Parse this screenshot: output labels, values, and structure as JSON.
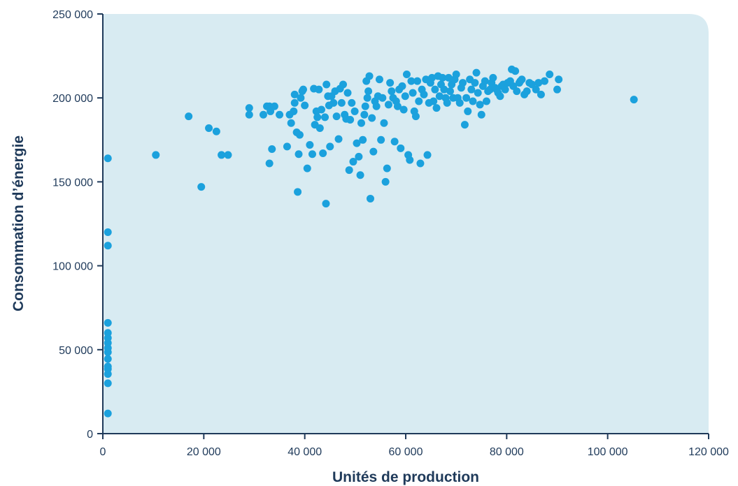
{
  "colors": {
    "plot_background": "#d8ebf2",
    "point": "#1ba1dd",
    "axis": "#1f3a5a",
    "text": "#1f3a5a"
  },
  "chart_data": {
    "type": "scatter",
    "title": "",
    "xlabel": "Unités de production",
    "ylabel": "Consommation d’énergie",
    "xlim": [
      0,
      120000
    ],
    "ylim": [
      0,
      250000
    ],
    "x_ticks": [
      0,
      20000,
      40000,
      60000,
      80000,
      100000,
      120000
    ],
    "y_ticks": [
      0,
      50000,
      100000,
      150000,
      200000,
      250000
    ],
    "x_tick_labels": [
      "0",
      "20 000",
      "40 000",
      "60 000",
      "80 000",
      "100 000",
      "120 000"
    ],
    "y_tick_labels": [
      "0",
      "50 000",
      "100 000",
      "150 000",
      "200 000",
      "250 000"
    ],
    "grid": false,
    "legend": "none",
    "series": [
      {
        "points": [
          [
            1000,
            12000
          ],
          [
            1000,
            30000
          ],
          [
            1000,
            35500
          ],
          [
            1000,
            38500
          ],
          [
            1000,
            40000
          ],
          [
            1000,
            44500
          ],
          [
            1000,
            48500
          ],
          [
            1000,
            51000
          ],
          [
            1000,
            54000
          ],
          [
            1000,
            57000
          ],
          [
            1000,
            60000
          ],
          [
            1000,
            66000
          ],
          [
            1000,
            112000
          ],
          [
            1000,
            120000
          ],
          [
            1000,
            164000
          ],
          [
            10500,
            166000
          ],
          [
            17000,
            189000
          ],
          [
            19500,
            147000
          ],
          [
            21000,
            182000
          ],
          [
            22500,
            180000
          ],
          [
            23500,
            166000
          ],
          [
            24800,
            166000
          ],
          [
            29000,
            190000
          ],
          [
            29000,
            194000
          ],
          [
            31800,
            190000
          ],
          [
            32500,
            195000
          ],
          [
            33000,
            195000
          ],
          [
            33200,
            192000
          ],
          [
            33000,
            161000
          ],
          [
            33500,
            169500
          ],
          [
            34000,
            195000
          ],
          [
            35000,
            190000
          ],
          [
            36500,
            171000
          ],
          [
            37000,
            190000
          ],
          [
            37300,
            185000
          ],
          [
            37800,
            192000
          ],
          [
            38000,
            197000
          ],
          [
            38000,
            202000
          ],
          [
            38400,
            179500
          ],
          [
            38600,
            144000
          ],
          [
            38800,
            166500
          ],
          [
            39000,
            178000
          ],
          [
            39200,
            200000
          ],
          [
            39500,
            204000
          ],
          [
            39700,
            205000
          ],
          [
            40000,
            195500
          ],
          [
            40500,
            158000
          ],
          [
            41000,
            172000
          ],
          [
            41500,
            166500
          ],
          [
            41800,
            205500
          ],
          [
            42000,
            184000
          ],
          [
            42300,
            192000
          ],
          [
            42500,
            188500
          ],
          [
            42800,
            205000
          ],
          [
            43000,
            182000
          ],
          [
            43300,
            193000
          ],
          [
            43600,
            167000
          ],
          [
            44000,
            188500
          ],
          [
            44200,
            137000
          ],
          [
            44300,
            208000
          ],
          [
            44600,
            201000
          ],
          [
            44800,
            195500
          ],
          [
            45000,
            171000
          ],
          [
            45300,
            201000
          ],
          [
            45700,
            197000
          ],
          [
            46000,
            204000
          ],
          [
            46300,
            189000
          ],
          [
            46700,
            175500
          ],
          [
            47000,
            205500
          ],
          [
            47300,
            197000
          ],
          [
            47600,
            208000
          ],
          [
            47900,
            190000
          ],
          [
            48200,
            187500
          ],
          [
            48500,
            203000
          ],
          [
            48800,
            157000
          ],
          [
            49000,
            187000
          ],
          [
            49300,
            197000
          ],
          [
            49600,
            162000
          ],
          [
            49900,
            192000
          ],
          [
            50300,
            173000
          ],
          [
            50700,
            165000
          ],
          [
            51000,
            154000
          ],
          [
            51200,
            185000
          ],
          [
            51500,
            175000
          ],
          [
            51800,
            190000
          ],
          [
            52000,
            195000
          ],
          [
            52200,
            210000
          ],
          [
            52400,
            200000
          ],
          [
            52600,
            204000
          ],
          [
            52800,
            213000
          ],
          [
            53000,
            140000
          ],
          [
            53300,
            188000
          ],
          [
            53600,
            168000
          ],
          [
            53900,
            198000
          ],
          [
            54200,
            195000
          ],
          [
            54500,
            201000
          ],
          [
            54800,
            211000
          ],
          [
            55100,
            175000
          ],
          [
            55400,
            200000
          ],
          [
            55700,
            185000
          ],
          [
            56000,
            150000
          ],
          [
            56300,
            158000
          ],
          [
            56600,
            196000
          ],
          [
            56900,
            209000
          ],
          [
            57200,
            204000
          ],
          [
            57500,
            200000
          ],
          [
            57800,
            174000
          ],
          [
            58100,
            198000
          ],
          [
            58400,
            195000
          ],
          [
            58700,
            205000
          ],
          [
            59000,
            170000
          ],
          [
            59300,
            207000
          ],
          [
            59600,
            193000
          ],
          [
            59900,
            201000
          ],
          [
            60200,
            214000
          ],
          [
            60500,
            166000
          ],
          [
            60800,
            163000
          ],
          [
            61100,
            210000
          ],
          [
            61400,
            203000
          ],
          [
            61700,
            192000
          ],
          [
            62000,
            189000
          ],
          [
            62300,
            210000
          ],
          [
            62600,
            198000
          ],
          [
            62900,
            161000
          ],
          [
            63200,
            205000
          ],
          [
            63600,
            202000
          ],
          [
            64000,
            211000
          ],
          [
            64300,
            166000
          ],
          [
            64600,
            197000
          ],
          [
            64900,
            209000
          ],
          [
            65200,
            212000
          ],
          [
            65500,
            198000
          ],
          [
            65800,
            205000
          ],
          [
            66100,
            194000
          ],
          [
            66400,
            213000
          ],
          [
            66700,
            201000
          ],
          [
            67000,
            208000
          ],
          [
            67300,
            212000
          ],
          [
            67600,
            205000
          ],
          [
            67900,
            200000
          ],
          [
            68200,
            197000
          ],
          [
            68500,
            212000
          ],
          [
            68800,
            204000
          ],
          [
            69100,
            208000
          ],
          [
            69400,
            200000
          ],
          [
            69700,
            211000
          ],
          [
            70000,
            214000
          ],
          [
            70300,
            200000
          ],
          [
            70700,
            197000
          ],
          [
            71000,
            206000
          ],
          [
            71300,
            209000
          ],
          [
            71700,
            184000
          ],
          [
            72000,
            200000
          ],
          [
            72300,
            192000
          ],
          [
            72700,
            211000
          ],
          [
            73000,
            205000
          ],
          [
            73300,
            198000
          ],
          [
            73700,
            209000
          ],
          [
            74000,
            215000
          ],
          [
            74300,
            203000
          ],
          [
            74700,
            196000
          ],
          [
            75000,
            190000
          ],
          [
            75300,
            207000
          ],
          [
            75700,
            210000
          ],
          [
            76000,
            198000
          ],
          [
            76300,
            204000
          ],
          [
            76700,
            205000
          ],
          [
            77000,
            209000
          ],
          [
            77300,
            212000
          ],
          [
            77700,
            206000
          ],
          [
            78000,
            205000
          ],
          [
            78300,
            203000
          ],
          [
            78700,
            201000
          ],
          [
            79000,
            207000
          ],
          [
            79300,
            208000
          ],
          [
            79700,
            205000
          ],
          [
            80200,
            209000
          ],
          [
            80700,
            210000
          ],
          [
            81000,
            217000
          ],
          [
            81300,
            207000
          ],
          [
            81700,
            216000
          ],
          [
            82000,
            204000
          ],
          [
            82500,
            209000
          ],
          [
            82700,
            210000
          ],
          [
            83000,
            211000
          ],
          [
            83500,
            202000
          ],
          [
            84000,
            204000
          ],
          [
            84500,
            209000
          ],
          [
            85000,
            208000
          ],
          [
            85800,
            205000
          ],
          [
            86300,
            209000
          ],
          [
            86800,
            202000
          ],
          [
            87500,
            210000
          ],
          [
            88500,
            214000
          ],
          [
            90000,
            205000
          ],
          [
            90300,
            211000
          ],
          [
            105200,
            199000
          ]
        ]
      }
    ]
  }
}
